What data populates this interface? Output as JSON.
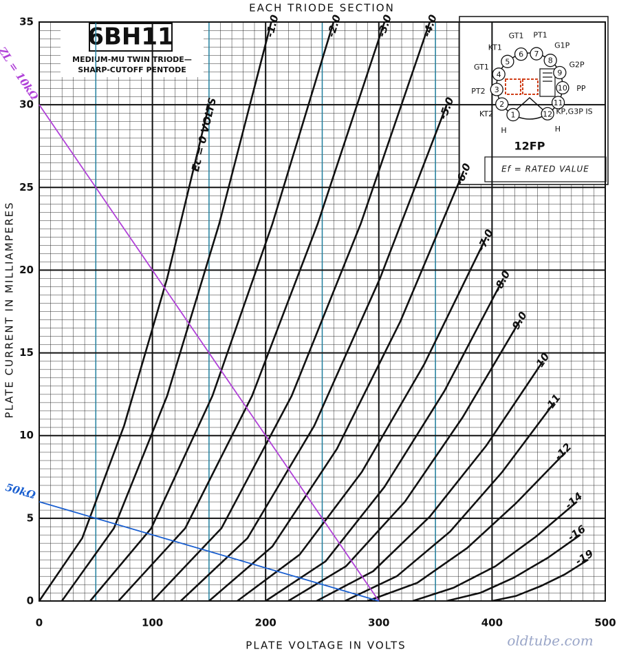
{
  "chart_data": {
    "type": "line",
    "title": "EACH TRIODE SECTION",
    "x_label": "PLATE VOLTAGE IN VOLTS",
    "y_label": "PLATE CURRENT IN MILLIAMPERES",
    "xlim": [
      0,
      500
    ],
    "ylim": [
      0,
      35
    ],
    "xticks": [
      0,
      100,
      200,
      300,
      400,
      500
    ],
    "yticks": [
      0,
      5,
      10,
      15,
      20,
      25,
      30,
      35
    ],
    "grid": true,
    "guide_lines": {
      "color": "#1f7f9e",
      "x": [
        50,
        150,
        200,
        250,
        300,
        350,
        400
      ]
    },
    "series": [
      {
        "name": "Ec = 0 VOLTS",
        "color": "#111111",
        "x": [
          0,
          38,
          75,
          113,
          150
        ],
        "values": [
          0,
          3.8,
          10.6,
          19.5,
          30
        ]
      },
      {
        "name": "-1.0",
        "color": "#111111",
        "x": [
          20,
          66,
          113,
          159,
          205
        ],
        "values": [
          0,
          4.4,
          12.4,
          22.8,
          35
        ]
      },
      {
        "name": "-2.0",
        "color": "#111111",
        "x": [
          45,
          99,
          153,
          206,
          260
        ],
        "values": [
          0,
          4.4,
          12.4,
          22.8,
          35
        ]
      },
      {
        "name": "-3.0",
        "color": "#111111",
        "x": [
          70,
          129,
          188,
          246,
          305
        ],
        "values": [
          0,
          4.4,
          12.4,
          22.8,
          35
        ]
      },
      {
        "name": "-4.0",
        "color": "#111111",
        "x": [
          100,
          161,
          223,
          284,
          345
        ],
        "values": [
          0,
          4.4,
          12.4,
          22.8,
          35
        ]
      },
      {
        "name": "-5.0",
        "color": "#111111",
        "x": [
          125,
          184,
          243,
          301,
          360
        ],
        "values": [
          0,
          3.8,
          10.6,
          19.5,
          30
        ]
      },
      {
        "name": "-6.0",
        "color": "#111111",
        "x": [
          150,
          206,
          263,
          319,
          375
        ],
        "values": [
          0,
          3.3,
          9.2,
          16.9,
          26
        ]
      },
      {
        "name": "-7.0",
        "color": "#111111",
        "x": [
          175,
          230,
          285,
          340,
          395
        ],
        "values": [
          0,
          2.8,
          7.8,
          14.3,
          22
        ]
      },
      {
        "name": "-8.0",
        "color": "#111111",
        "x": [
          200,
          253,
          305,
          358,
          410
        ],
        "values": [
          0,
          2.4,
          6.9,
          12.7,
          19.5
        ]
      },
      {
        "name": "-9.0",
        "color": "#111111",
        "x": [
          220,
          271,
          323,
          374,
          425
        ],
        "values": [
          0,
          2.1,
          6.0,
          11.1,
          17
        ]
      },
      {
        "name": "-10",
        "color": "#111111",
        "x": [
          245,
          295,
          345,
          395,
          445
        ],
        "values": [
          0,
          1.8,
          5.1,
          9.4,
          14.5
        ]
      },
      {
        "name": "-11",
        "color": "#111111",
        "x": [
          270,
          316,
          363,
          409,
          455
        ],
        "values": [
          0,
          1.5,
          4.2,
          7.8,
          12
        ]
      },
      {
        "name": "-12",
        "color": "#111111",
        "x": [
          290,
          334,
          378,
          421,
          465
        ],
        "values": [
          0,
          1.1,
          3.2,
          5.9,
          9
        ]
      },
      {
        "name": "-14",
        "color": "#111111",
        "x": [
          330,
          366,
          403,
          439,
          475
        ],
        "values": [
          0,
          0.8,
          2.1,
          3.9,
          6
        ]
      },
      {
        "name": "-16",
        "color": "#111111",
        "x": [
          360,
          390,
          419,
          449,
          478
        ],
        "values": [
          0,
          0.5,
          1.4,
          2.6,
          4
        ]
      },
      {
        "name": "-19",
        "color": "#111111",
        "x": [
          400,
          421,
          443,
          464,
          485
        ],
        "values": [
          0,
          0.3,
          0.9,
          1.6,
          2.5
        ]
      }
    ],
    "load_lines": [
      {
        "name": "ZL = 10kΩ",
        "color": "#b040d8",
        "x": [
          0,
          300
        ],
        "values": [
          30,
          0
        ]
      },
      {
        "name": "50kΩ",
        "color": "#1a5fd0",
        "x": [
          0,
          300
        ],
        "values": [
          6,
          0
        ]
      }
    ]
  },
  "product": {
    "tube": "6BH11",
    "description": [
      "MEDIUM-MU TWIN TRIODE—",
      "SHARP-CUTOFF PENTODE"
    ],
    "basing": "12FP",
    "note": "Ef = RATED VALUE",
    "pins": [
      {
        "number": "1",
        "label": "H"
      },
      {
        "number": "2",
        "label": "KT2"
      },
      {
        "number": "3",
        "label": "PT2"
      },
      {
        "number": "4",
        "label": "GT1"
      },
      {
        "number": "5",
        "label": "KT1"
      },
      {
        "number": "6",
        "label": "GT1"
      },
      {
        "number": "7",
        "label": "PT1"
      },
      {
        "number": "8",
        "label": "G1P"
      },
      {
        "number": "9",
        "label": "G2P"
      },
      {
        "number": "10",
        "label": "PP"
      },
      {
        "number": "11",
        "label": "KP,G3P IS"
      },
      {
        "number": "12",
        "label": "H"
      }
    ]
  },
  "watermark": "oldtube.com"
}
